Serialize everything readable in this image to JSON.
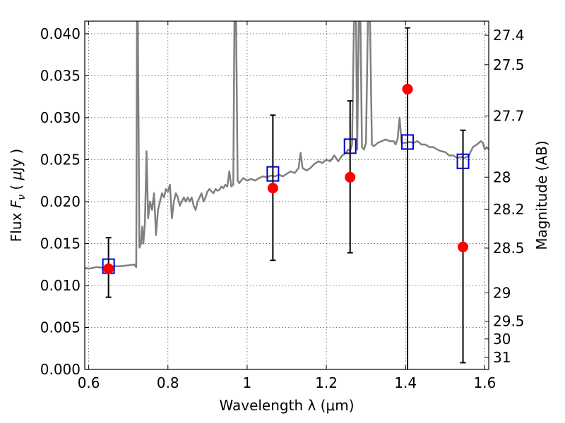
{
  "chart_data": {
    "type": "line",
    "title": "",
    "xlabel": "Wavelength  λ (μm)",
    "ylabel": "Flux  F_ν  ( μJy )",
    "ylabel_parts": [
      "Flux  ",
      "F",
      "ν",
      "  ( ",
      "μ",
      "Jy )"
    ],
    "y2label": "Magnitude (AB)",
    "xlim": [
      0.59,
      1.61
    ],
    "ylim": [
      0.0,
      0.0415
    ],
    "grid": true,
    "x_ticks": [
      0.6,
      0.8,
      1.0,
      1.2,
      1.4,
      1.6
    ],
    "x_tick_labels": [
      "0.6",
      "0.8",
      "1",
      "1.2",
      "1.4",
      "1.6"
    ],
    "y_ticks": [
      0.0,
      0.005,
      0.01,
      0.015,
      0.02,
      0.025,
      0.03,
      0.035,
      0.04
    ],
    "y_tick_labels": [
      "0.000",
      "0.005",
      "0.010",
      "0.015",
      "0.020",
      "0.025",
      "0.030",
      "0.035",
      "0.040"
    ],
    "y2_tick_labels": [
      "27.4",
      "27.5",
      "27.7",
      "28",
      "28.2",
      "28.5",
      "29",
      "29.5",
      "30",
      "31"
    ],
    "y2_tick_magnitudes": [
      27.4,
      27.5,
      27.7,
      28.0,
      28.2,
      28.5,
      29.0,
      29.5,
      30.0,
      31.0
    ],
    "y2_zeropoint_uJy": 3631000000,
    "series": [
      {
        "kind": "line",
        "color": "#808080",
        "points": [
          [
            0.59,
            0.0121
          ],
          [
            0.6,
            0.012
          ],
          [
            0.62,
            0.0122
          ],
          [
            0.64,
            0.0121
          ],
          [
            0.66,
            0.0123
          ],
          [
            0.68,
            0.0123
          ],
          [
            0.7,
            0.0124
          ],
          [
            0.715,
            0.0125
          ],
          [
            0.72,
            0.0122
          ],
          [
            0.722,
            0.042
          ],
          [
            0.724,
            0.042
          ],
          [
            0.728,
            0.0145
          ],
          [
            0.732,
            0.015
          ],
          [
            0.735,
            0.017
          ],
          [
            0.738,
            0.015
          ],
          [
            0.742,
            0.0175
          ],
          [
            0.746,
            0.026
          ],
          [
            0.75,
            0.018
          ],
          [
            0.755,
            0.02
          ],
          [
            0.76,
            0.019
          ],
          [
            0.765,
            0.021
          ],
          [
            0.77,
            0.016
          ],
          [
            0.775,
            0.019
          ],
          [
            0.78,
            0.02
          ],
          [
            0.785,
            0.021
          ],
          [
            0.79,
            0.0205
          ],
          [
            0.795,
            0.0215
          ],
          [
            0.8,
            0.0212
          ],
          [
            0.805,
            0.022
          ],
          [
            0.81,
            0.018
          ],
          [
            0.815,
            0.02
          ],
          [
            0.82,
            0.021
          ],
          [
            0.825,
            0.0205
          ],
          [
            0.83,
            0.0195
          ],
          [
            0.835,
            0.02
          ],
          [
            0.84,
            0.0205
          ],
          [
            0.845,
            0.02
          ],
          [
            0.85,
            0.0205
          ],
          [
            0.855,
            0.02
          ],
          [
            0.86,
            0.0205
          ],
          [
            0.865,
            0.0195
          ],
          [
            0.87,
            0.019
          ],
          [
            0.875,
            0.02
          ],
          [
            0.88,
            0.0205
          ],
          [
            0.885,
            0.021
          ],
          [
            0.89,
            0.02
          ],
          [
            0.895,
            0.0205
          ],
          [
            0.9,
            0.0212
          ],
          [
            0.905,
            0.0215
          ],
          [
            0.91,
            0.0212
          ],
          [
            0.915,
            0.021
          ],
          [
            0.92,
            0.0215
          ],
          [
            0.925,
            0.0213
          ],
          [
            0.93,
            0.0214
          ],
          [
            0.935,
            0.0218
          ],
          [
            0.94,
            0.0216
          ],
          [
            0.945,
            0.022
          ],
          [
            0.95,
            0.0218
          ],
          [
            0.955,
            0.0236
          ],
          [
            0.96,
            0.0218
          ],
          [
            0.965,
            0.022
          ],
          [
            0.968,
            0.042
          ],
          [
            0.972,
            0.042
          ],
          [
            0.976,
            0.0225
          ],
          [
            0.98,
            0.0222
          ],
          [
            0.99,
            0.0228
          ],
          [
            1.0,
            0.0225
          ],
          [
            1.01,
            0.0227
          ],
          [
            1.02,
            0.0225
          ],
          [
            1.03,
            0.0228
          ],
          [
            1.04,
            0.023
          ],
          [
            1.05,
            0.0229
          ],
          [
            1.06,
            0.0231
          ],
          [
            1.07,
            0.023
          ],
          [
            1.08,
            0.0232
          ],
          [
            1.09,
            0.023
          ],
          [
            1.1,
            0.0233
          ],
          [
            1.11,
            0.0236
          ],
          [
            1.12,
            0.0234
          ],
          [
            1.13,
            0.024
          ],
          [
            1.135,
            0.0258
          ],
          [
            1.14,
            0.024
          ],
          [
            1.15,
            0.0237
          ],
          [
            1.16,
            0.024
          ],
          [
            1.17,
            0.0245
          ],
          [
            1.18,
            0.0248
          ],
          [
            1.19,
            0.0246
          ],
          [
            1.2,
            0.025
          ],
          [
            1.21,
            0.0248
          ],
          [
            1.22,
            0.0255
          ],
          [
            1.23,
            0.0248
          ],
          [
            1.24,
            0.0255
          ],
          [
            1.25,
            0.0258
          ],
          [
            1.255,
            0.0262
          ],
          [
            1.26,
            0.026
          ],
          [
            1.265,
            0.0268
          ],
          [
            1.27,
            0.042
          ],
          [
            1.275,
            0.042
          ],
          [
            1.278,
            0.0262
          ],
          [
            1.282,
            0.042
          ],
          [
            1.286,
            0.042
          ],
          [
            1.29,
            0.0265
          ],
          [
            1.295,
            0.0262
          ],
          [
            1.3,
            0.027
          ],
          [
            1.305,
            0.042
          ],
          [
            1.31,
            0.042
          ],
          [
            1.315,
            0.0268
          ],
          [
            1.32,
            0.0266
          ],
          [
            1.33,
            0.027
          ],
          [
            1.34,
            0.0272
          ],
          [
            1.35,
            0.0274
          ],
          [
            1.36,
            0.0272
          ],
          [
            1.37,
            0.0272
          ],
          [
            1.375,
            0.0268
          ],
          [
            1.38,
            0.0275
          ],
          [
            1.385,
            0.03
          ],
          [
            1.39,
            0.027
          ],
          [
            1.4,
            0.027
          ],
          [
            1.41,
            0.0271
          ],
          [
            1.42,
            0.027
          ],
          [
            1.43,
            0.0272
          ],
          [
            1.44,
            0.0268
          ],
          [
            1.45,
            0.0268
          ],
          [
            1.46,
            0.0265
          ],
          [
            1.47,
            0.0265
          ],
          [
            1.48,
            0.0262
          ],
          [
            1.49,
            0.026
          ],
          [
            1.5,
            0.0259
          ],
          [
            1.51,
            0.0255
          ],
          [
            1.52,
            0.0255
          ],
          [
            1.53,
            0.0252
          ],
          [
            1.54,
            0.0253
          ],
          [
            1.55,
            0.0252
          ],
          [
            1.56,
            0.0255
          ],
          [
            1.57,
            0.0265
          ],
          [
            1.58,
            0.0268
          ],
          [
            1.59,
            0.0272
          ],
          [
            1.595,
            0.027
          ],
          [
            1.6,
            0.0262
          ],
          [
            1.605,
            0.0265
          ],
          [
            1.61,
            0.0262
          ]
        ]
      },
      {
        "kind": "points",
        "marker": "circle",
        "color": "#ff0000",
        "x": [
          0.65,
          1.065,
          1.26,
          1.405,
          1.545
        ],
        "y": [
          0.012,
          0.0216,
          0.0229,
          0.0334,
          0.0146
        ],
        "yerr_low": [
          0.0086,
          0.013,
          0.0139,
          null,
          0.0008
        ],
        "yerr_high": [
          0.0157,
          0.0303,
          0.032,
          0.0407,
          0.0285
        ]
      },
      {
        "kind": "points",
        "marker": "open-square",
        "color": "#0000cc",
        "x": [
          0.65,
          1.065,
          1.26,
          1.405,
          1.545
        ],
        "y": [
          0.0123,
          0.0233,
          0.0266,
          0.0271,
          0.0248
        ]
      }
    ]
  }
}
